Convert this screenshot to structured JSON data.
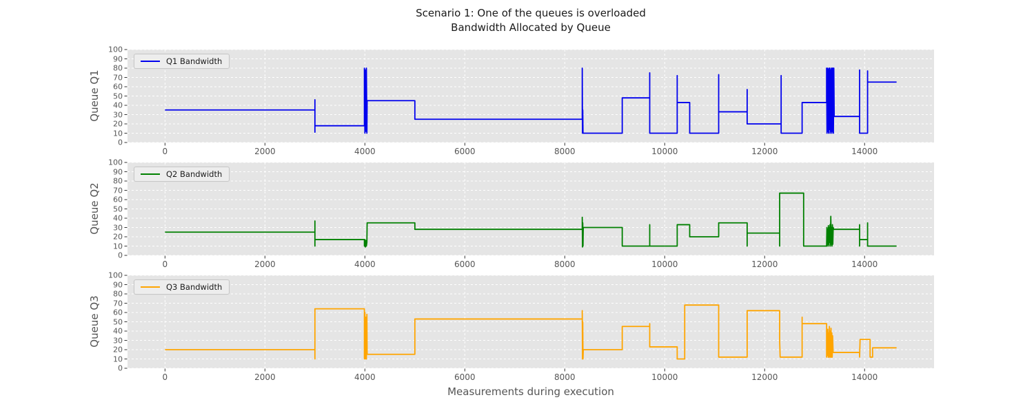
{
  "chart_data": {
    "type": "line",
    "title": "Scenario 1: One of the queues is overloaded",
    "subtitle": "Bandwidth Allocated by Queue",
    "xlabel": "Measurements during execution",
    "xlim": [
      -750,
      15390
    ],
    "ylim": [
      0,
      100
    ],
    "xticks": [
      0,
      2000,
      4000,
      6000,
      8000,
      10000,
      12000,
      14000
    ],
    "yticks": [
      0,
      10,
      20,
      30,
      40,
      50,
      60,
      70,
      80,
      90,
      100
    ],
    "grid": true,
    "grid_color": "#ffffff",
    "plot_bg_color": "#e5e5e5",
    "legend_position": "upper-left",
    "subplots": [
      {
        "name": "Q1",
        "ylabel": "Queue Q1",
        "legend": "Q1 Bandwidth",
        "color": "#0000ee",
        "points": [
          [
            0,
            35
          ],
          [
            3000,
            35
          ],
          [
            3000,
            46
          ],
          [
            3000,
            11
          ],
          [
            3000,
            18
          ],
          [
            3990,
            18
          ],
          [
            3990,
            80
          ],
          [
            4000,
            10
          ],
          [
            4010,
            78
          ],
          [
            4020,
            12
          ],
          [
            4030,
            80
          ],
          [
            4040,
            10
          ],
          [
            4045,
            45
          ],
          [
            5000,
            45
          ],
          [
            5000,
            25
          ],
          [
            8350,
            25
          ],
          [
            8350,
            80
          ],
          [
            8355,
            10
          ],
          [
            8360,
            35
          ],
          [
            8365,
            10
          ],
          [
            9150,
            10
          ],
          [
            9150,
            48
          ],
          [
            9700,
            48
          ],
          [
            9700,
            75
          ],
          [
            9700,
            10
          ],
          [
            10250,
            10
          ],
          [
            10250,
            72
          ],
          [
            10250,
            43
          ],
          [
            10500,
            43
          ],
          [
            10500,
            10
          ],
          [
            11080,
            10
          ],
          [
            11080,
            73
          ],
          [
            11080,
            33
          ],
          [
            11650,
            33
          ],
          [
            11650,
            57
          ],
          [
            11650,
            20
          ],
          [
            12330,
            20
          ],
          [
            12330,
            72
          ],
          [
            12330,
            10
          ],
          [
            12750,
            10
          ],
          [
            12750,
            43
          ],
          [
            13240,
            43
          ],
          [
            13240,
            80
          ],
          [
            13248,
            10
          ],
          [
            13256,
            80
          ],
          [
            13264,
            12
          ],
          [
            13272,
            79
          ],
          [
            13280,
            10
          ],
          [
            13288,
            80
          ],
          [
            13296,
            14
          ],
          [
            13304,
            80
          ],
          [
            13312,
            10
          ],
          [
            13320,
            78
          ],
          [
            13328,
            12
          ],
          [
            13336,
            80
          ],
          [
            13344,
            10
          ],
          [
            13352,
            80
          ],
          [
            13360,
            12
          ],
          [
            13368,
            80
          ],
          [
            13376,
            10
          ],
          [
            13384,
            80
          ],
          [
            13392,
            28
          ],
          [
            13900,
            28
          ],
          [
            13900,
            78
          ],
          [
            13900,
            10
          ],
          [
            14060,
            10
          ],
          [
            14060,
            77
          ],
          [
            14060,
            65
          ],
          [
            14640,
            65
          ]
        ]
      },
      {
        "name": "Q2",
        "ylabel": "Queue Q2",
        "legend": "Q2 Bandwidth",
        "color": "#008000",
        "points": [
          [
            0,
            25
          ],
          [
            3000,
            25
          ],
          [
            3000,
            37
          ],
          [
            3000,
            10
          ],
          [
            3000,
            17
          ],
          [
            3990,
            17
          ],
          [
            3990,
            10
          ],
          [
            4000,
            17
          ],
          [
            4010,
            9
          ],
          [
            4020,
            16
          ],
          [
            4030,
            10
          ],
          [
            4040,
            14
          ],
          [
            4045,
            35
          ],
          [
            5000,
            35
          ],
          [
            5000,
            28
          ],
          [
            8350,
            28
          ],
          [
            8350,
            41
          ],
          [
            8355,
            9
          ],
          [
            8360,
            35
          ],
          [
            8365,
            10
          ],
          [
            8370,
            30
          ],
          [
            9150,
            30
          ],
          [
            9150,
            10
          ],
          [
            9700,
            10
          ],
          [
            9700,
            33
          ],
          [
            9700,
            10
          ],
          [
            10250,
            10
          ],
          [
            10250,
            33
          ],
          [
            10500,
            33
          ],
          [
            10500,
            20
          ],
          [
            11080,
            20
          ],
          [
            11080,
            35
          ],
          [
            11650,
            35
          ],
          [
            11650,
            10
          ],
          [
            11650,
            24
          ],
          [
            12300,
            24
          ],
          [
            12300,
            10
          ],
          [
            12300,
            67
          ],
          [
            12780,
            67
          ],
          [
            12780,
            10
          ],
          [
            13240,
            10
          ],
          [
            13246,
            30
          ],
          [
            13252,
            10
          ],
          [
            13260,
            28
          ],
          [
            13268,
            12
          ],
          [
            13276,
            32
          ],
          [
            13284,
            10
          ],
          [
            13292,
            30
          ],
          [
            13300,
            14
          ],
          [
            13308,
            33
          ],
          [
            13316,
            10
          ],
          [
            13324,
            42
          ],
          [
            13332,
            12
          ],
          [
            13340,
            30
          ],
          [
            13348,
            10
          ],
          [
            13356,
            33
          ],
          [
            13364,
            12
          ],
          [
            13372,
            30
          ],
          [
            13382,
            28
          ],
          [
            13900,
            28
          ],
          [
            13900,
            33
          ],
          [
            13900,
            10
          ],
          [
            13900,
            17
          ],
          [
            14060,
            17
          ],
          [
            14060,
            35
          ],
          [
            14060,
            10
          ],
          [
            14640,
            10
          ]
        ]
      },
      {
        "name": "Q3",
        "ylabel": "Queue Q3",
        "legend": "Q3 Bandwidth",
        "color": "#ffa500",
        "points": [
          [
            0,
            20
          ],
          [
            3000,
            20
          ],
          [
            3000,
            10
          ],
          [
            3000,
            64
          ],
          [
            3990,
            64
          ],
          [
            3990,
            10
          ],
          [
            4000,
            60
          ],
          [
            4010,
            10
          ],
          [
            4020,
            55
          ],
          [
            4030,
            10
          ],
          [
            4040,
            58
          ],
          [
            4045,
            15
          ],
          [
            5000,
            15
          ],
          [
            5000,
            53
          ],
          [
            8350,
            53
          ],
          [
            8350,
            62
          ],
          [
            8355,
            10
          ],
          [
            8360,
            50
          ],
          [
            8365,
            10
          ],
          [
            8370,
            20
          ],
          [
            9150,
            20
          ],
          [
            9150,
            45
          ],
          [
            9700,
            45
          ],
          [
            9700,
            48
          ],
          [
            9700,
            23
          ],
          [
            10250,
            23
          ],
          [
            10250,
            10
          ],
          [
            10400,
            10
          ],
          [
            10400,
            68
          ],
          [
            11080,
            68
          ],
          [
            11080,
            12
          ],
          [
            11650,
            12
          ],
          [
            11650,
            62
          ],
          [
            12300,
            62
          ],
          [
            12300,
            30
          ],
          [
            12310,
            12
          ],
          [
            12750,
            12
          ],
          [
            12750,
            55
          ],
          [
            12750,
            48
          ],
          [
            13240,
            48
          ],
          [
            13240,
            12
          ],
          [
            13248,
            40
          ],
          [
            13256,
            14
          ],
          [
            13264,
            42
          ],
          [
            13272,
            12
          ],
          [
            13280,
            38
          ],
          [
            13288,
            12
          ],
          [
            13296,
            45
          ],
          [
            13304,
            12
          ],
          [
            13312,
            40
          ],
          [
            13320,
            12
          ],
          [
            13328,
            43
          ],
          [
            13336,
            12
          ],
          [
            13344,
            38
          ],
          [
            13352,
            12
          ],
          [
            13360,
            35
          ],
          [
            13370,
            17
          ],
          [
            13900,
            17
          ],
          [
            13900,
            12
          ],
          [
            13910,
            31
          ],
          [
            14110,
            31
          ],
          [
            14110,
            12
          ],
          [
            14160,
            12
          ],
          [
            14160,
            22
          ],
          [
            14640,
            22
          ]
        ]
      }
    ]
  }
}
